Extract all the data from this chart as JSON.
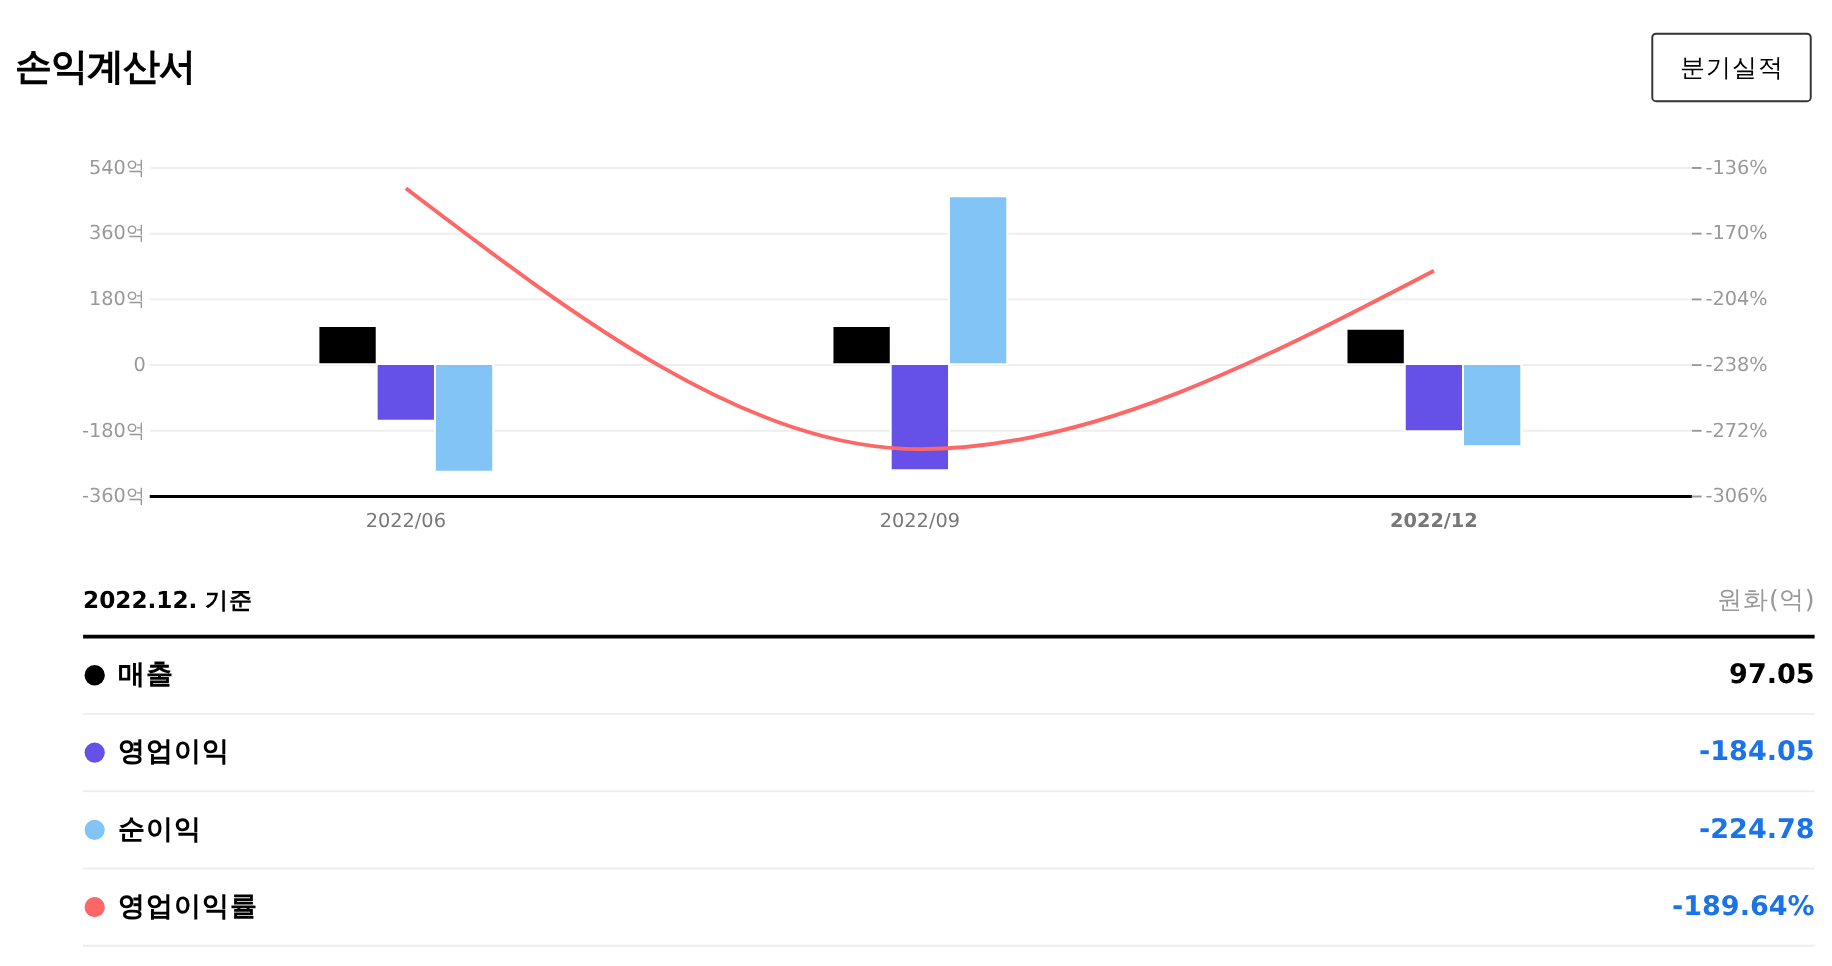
{
  "chart_data": {
    "type": "bar",
    "title": "손익계산서",
    "categories": [
      "2022/06",
      "2022/09",
      "2022/12"
    ],
    "series": [
      {
        "name": "매출",
        "color": "#000000",
        "values": [
          104,
          104,
          97.05
        ]
      },
      {
        "name": "영업이익",
        "color": "#6651e8",
        "values": [
          -155,
          -291,
          -184.05
        ]
      },
      {
        "name": "순이익",
        "color": "#82c4f5",
        "values": [
          -295,
          460,
          -224.78
        ]
      },
      {
        "name": "영업이익률",
        "type": "line",
        "axis": "y2",
        "color": "#ff6666",
        "values": [
          -147,
          -282,
          -189.64
        ]
      }
    ],
    "ylim": [
      -360,
      540
    ],
    "yticks": [
      {
        "value": 540,
        "label": "540억"
      },
      {
        "value": 360,
        "label": "360억"
      },
      {
        "value": 180,
        "label": "180억"
      },
      0,
      {
        "value": -180,
        "label": "-180억"
      },
      {
        "value": -360,
        "label": "-360억"
      }
    ],
    "y2lim": [
      -306,
      -136
    ],
    "y2ticks": [
      {
        "value": -136,
        "label": "-136%"
      },
      {
        "value": -170,
        "label": "-170%"
      },
      {
        "value": -204,
        "label": "-204%"
      },
      {
        "value": -238,
        "label": "-238%"
      },
      {
        "value": -272,
        "label": "-272%"
      },
      {
        "value": -306,
        "label": "-306%"
      }
    ],
    "grid": "y",
    "legend": "bottom",
    "annotations": [
      "분기실적",
      "2022.12. 기준",
      "원화(억)",
      "97.05",
      "-184.05",
      "-224.78",
      "-189.64%"
    ]
  }
}
